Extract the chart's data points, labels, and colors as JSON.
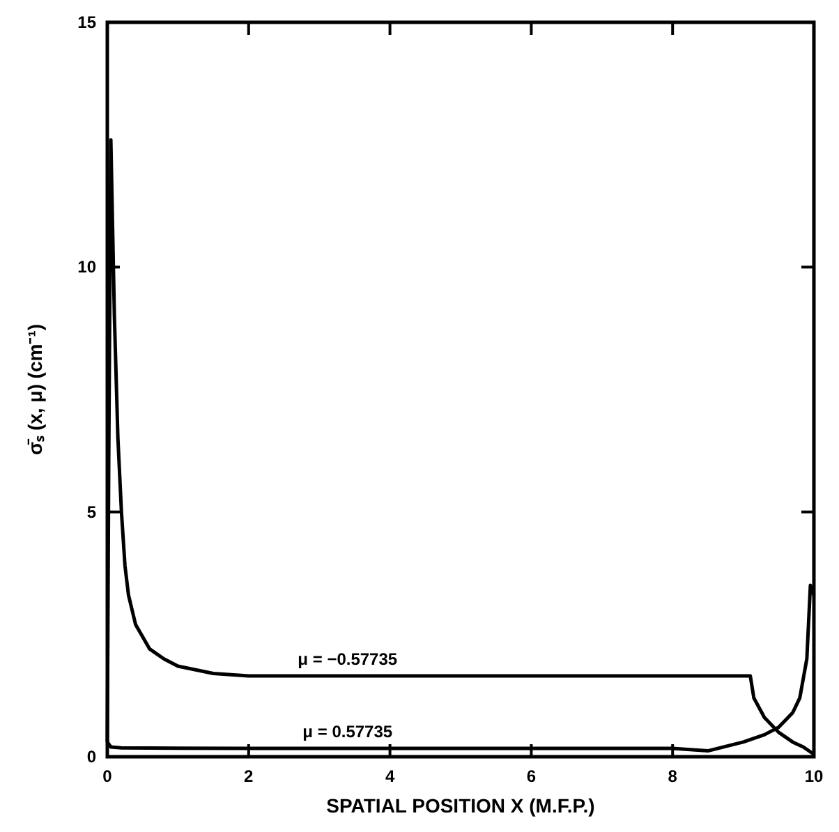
{
  "chart_data": {
    "type": "line",
    "xlabel": "SPATIAL POSITION X (M.F.P.)",
    "ylabel": "σ̄ₛ (x, μ) (cm⁻¹)",
    "xlim": [
      0,
      10
    ],
    "ylim": [
      0,
      15
    ],
    "xticks": [
      0,
      2,
      4,
      6,
      8,
      10
    ],
    "yticks": [
      0,
      5,
      10,
      15
    ],
    "grid": false,
    "legend": false,
    "marker": "none",
    "line_style": "solid",
    "series": [
      {
        "name": "μ = −0.57735",
        "color": "#000000",
        "x": [
          0,
          0.02,
          0.05,
          0.1,
          0.15,
          0.2,
          0.25,
          0.3,
          0.4,
          0.6,
          0.8,
          1,
          1.5,
          2,
          4,
          6,
          8,
          9.1,
          9.15,
          9.3,
          9.5,
          9.7,
          9.85,
          10
        ],
        "values": [
          0.3,
          6,
          12.6,
          9,
          6.5,
          5,
          3.9,
          3.3,
          2.7,
          2.2,
          2,
          1.85,
          1.7,
          1.65,
          1.65,
          1.65,
          1.65,
          1.65,
          1.2,
          0.8,
          0.5,
          0.3,
          0.2,
          0.05
        ]
      },
      {
        "name": "μ = 0.57735",
        "color": "#000000",
        "x": [
          0,
          0.05,
          0.2,
          2,
          4,
          6,
          8,
          8.5,
          9,
          9.3,
          9.5,
          9.7,
          9.8,
          9.9,
          9.95,
          10
        ],
        "values": [
          0.3,
          0.2,
          0.18,
          0.17,
          0.17,
          0.17,
          0.17,
          0.12,
          0.3,
          0.45,
          0.6,
          0.9,
          1.2,
          2,
          3.5,
          3.3
        ]
      }
    ]
  }
}
